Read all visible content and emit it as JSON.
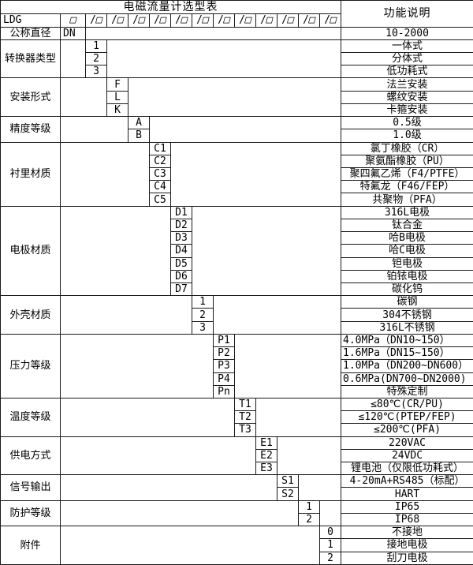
{
  "title": "电磁流量计选型表",
  "right_header": "功能说明",
  "model_prefix": "LDG",
  "code_row": {
    "slash": "/",
    "box": "□",
    "slot_count": 12
  },
  "sections": [
    {
      "label": "公称直径",
      "col": 0,
      "rows": [
        {
          "code": "DN",
          "desc": "10-2000"
        }
      ]
    },
    {
      "label": "转换器类型",
      "col": 1,
      "rows": [
        {
          "code": "1",
          "desc": "一体式"
        },
        {
          "code": "2",
          "desc": "分体式"
        },
        {
          "code": "3",
          "desc": "低功耗式"
        }
      ]
    },
    {
      "label": "安装形式",
      "col": 2,
      "rows": [
        {
          "code": "F",
          "desc": "法兰安装"
        },
        {
          "code": "L",
          "desc": "螺纹安装"
        },
        {
          "code": "K",
          "desc": "卡箍安装"
        }
      ]
    },
    {
      "label": "精度等级",
      "col": 3,
      "rows": [
        {
          "code": "A",
          "desc": "0.5级"
        },
        {
          "code": "B",
          "desc": "1.0级"
        }
      ]
    },
    {
      "label": "衬里材质",
      "col": 4,
      "rows": [
        {
          "code": "C1",
          "desc": "氯丁橡胶（CR）"
        },
        {
          "code": "C2",
          "desc": "聚氨酯橡胶（PU）"
        },
        {
          "code": "C3",
          "desc": "聚四氟乙烯（F4/PTFE）"
        },
        {
          "code": "C4",
          "desc": "特氟龙（F46/FEP）"
        },
        {
          "code": "C5",
          "desc": "共聚物（PFA）"
        }
      ]
    },
    {
      "label": "电极材质",
      "col": 5,
      "rows": [
        {
          "code": "D1",
          "desc": "316L电极"
        },
        {
          "code": "D2",
          "desc": "钛合金"
        },
        {
          "code": "D3",
          "desc": "哈B电极"
        },
        {
          "code": "D4",
          "desc": "哈C电极"
        },
        {
          "code": "D5",
          "desc": "钽电极"
        },
        {
          "code": "D6",
          "desc": "铂铱电极"
        },
        {
          "code": "D7",
          "desc": "碳化钨"
        }
      ]
    },
    {
      "label": "外壳材质",
      "col": 6,
      "rows": [
        {
          "code": "1",
          "desc": "碳钢"
        },
        {
          "code": "2",
          "desc": "304不锈钢"
        },
        {
          "code": "3",
          "desc": "316L不锈钢"
        }
      ]
    },
    {
      "label": "压力等级",
      "col": 7,
      "rows": [
        {
          "code": "P1",
          "desc": "4.0MPa（DN10~150）",
          "align": "left"
        },
        {
          "code": "P2",
          "desc": "1.6MPa（DN15~150）",
          "align": "left"
        },
        {
          "code": "P3",
          "desc": "1.0MPa（DN200~DN600）",
          "align": "left"
        },
        {
          "code": "P4",
          "desc": "0.6MPa(DN700~DN2000)",
          "align": "left"
        },
        {
          "code": "Pn",
          "desc": "特殊定制"
        }
      ]
    },
    {
      "label": "温度等级",
      "col": 8,
      "rows": [
        {
          "code": "T1",
          "desc": "≤80℃(CR/PU)"
        },
        {
          "code": "T2",
          "desc": "≤120℃(PTEP/FEP)"
        },
        {
          "code": "T3",
          "desc": "≤200℃(PFA)"
        }
      ]
    },
    {
      "label": "供电方式",
      "col": 9,
      "rows": [
        {
          "code": "E1",
          "desc": "220VAC"
        },
        {
          "code": "E2",
          "desc": "24VDC"
        },
        {
          "code": "E3",
          "desc": "锂电池（仅限低功耗式）"
        }
      ]
    },
    {
      "label": "信号输出",
      "col": 10,
      "rows": [
        {
          "code": "S1",
          "desc": "4-20mA+RS485（标配）"
        },
        {
          "code": "S2",
          "desc": "HART"
        }
      ]
    },
    {
      "label": "防护等级",
      "col": 11,
      "rows": [
        {
          "code": "1",
          "desc": "IP65"
        },
        {
          "code": "2",
          "desc": "IP68"
        }
      ]
    },
    {
      "label": "附件",
      "col": 12,
      "rows": [
        {
          "code": "0",
          "desc": "不接地"
        },
        {
          "code": "1",
          "desc": "接地电极"
        },
        {
          "code": "2",
          "desc": "刮刀电极"
        }
      ]
    }
  ]
}
